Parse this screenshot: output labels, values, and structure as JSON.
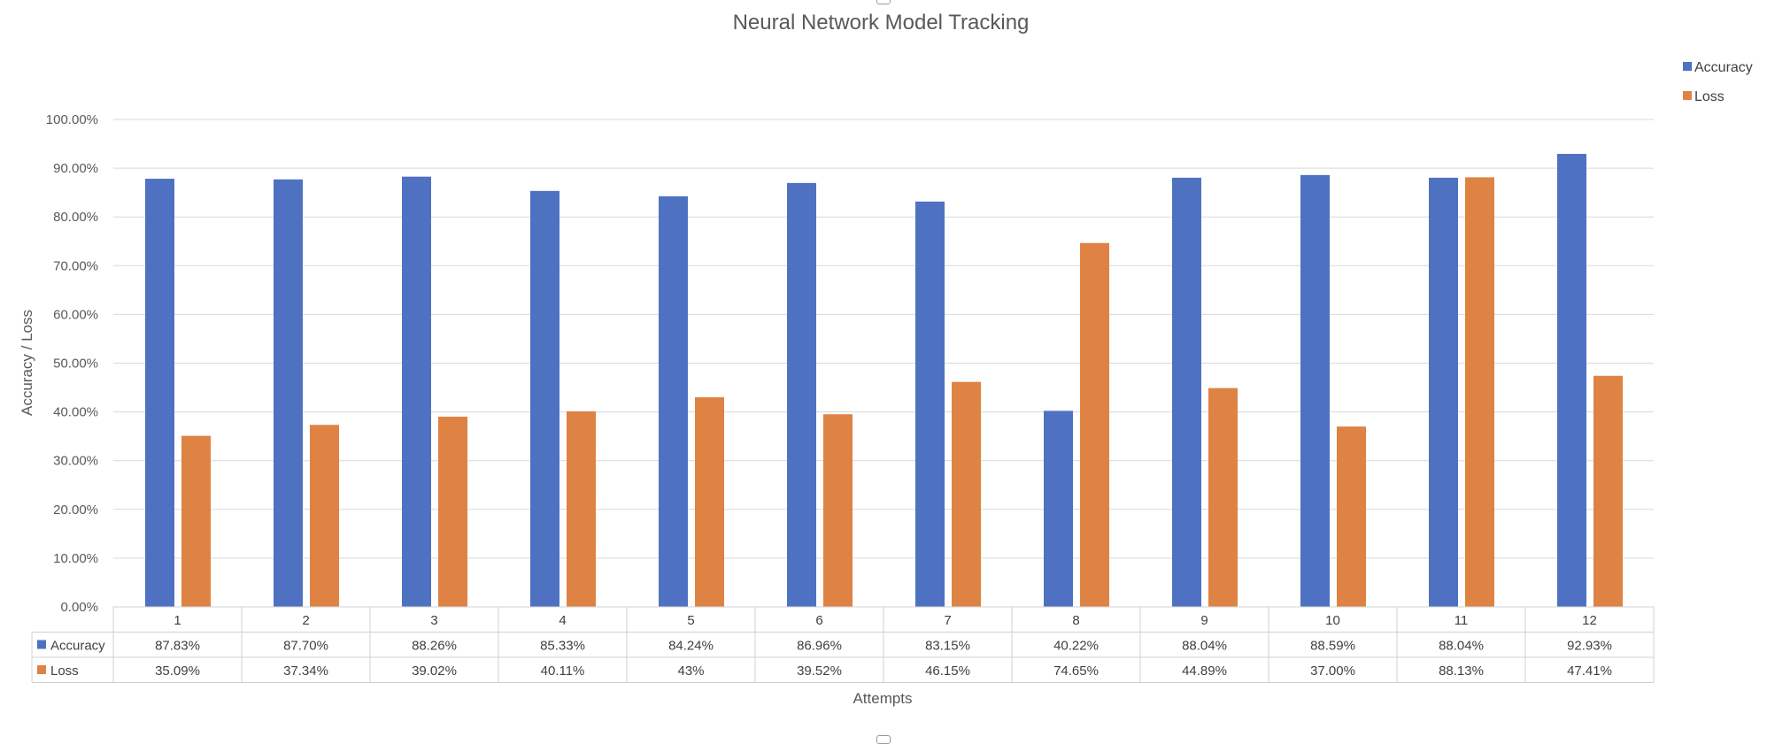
{
  "chart_data": {
    "type": "bar",
    "title": "Neural Network Model Tracking",
    "xlabel": "Attempts",
    "ylabel": "Accuracy / Loss",
    "ylim": [
      0,
      100
    ],
    "yticks": [
      "0.00%",
      "10.00%",
      "20.00%",
      "30.00%",
      "40.00%",
      "50.00%",
      "60.00%",
      "70.00%",
      "80.00%",
      "90.00%",
      "100.00%"
    ],
    "categories": [
      "1",
      "2",
      "3",
      "4",
      "5",
      "6",
      "7",
      "8",
      "9",
      "10",
      "11",
      "12"
    ],
    "grid": true,
    "legend_position": "top-right",
    "data_table": true,
    "series": [
      {
        "name": "Accuracy",
        "color": "#4e72c1",
        "values": [
          87.83,
          87.7,
          88.26,
          85.33,
          84.24,
          86.96,
          83.15,
          40.22,
          88.04,
          88.59,
          88.04,
          92.93
        ],
        "labels": [
          "87.83%",
          "87.70%",
          "88.26%",
          "85.33%",
          "84.24%",
          "86.96%",
          "83.15%",
          "40.22%",
          "88.04%",
          "88.59%",
          "88.04%",
          "92.93%"
        ]
      },
      {
        "name": "Loss",
        "color": "#de8344",
        "values": [
          35.09,
          37.34,
          39.02,
          40.11,
          43,
          39.52,
          46.15,
          74.65,
          44.89,
          37.0,
          88.13,
          47.41
        ],
        "labels": [
          "35.09%",
          "37.34%",
          "39.02%",
          "40.11%",
          "43%",
          "39.52%",
          "46.15%",
          "74.65%",
          "44.89%",
          "37.00%",
          "88.13%",
          "47.41%"
        ]
      }
    ]
  }
}
